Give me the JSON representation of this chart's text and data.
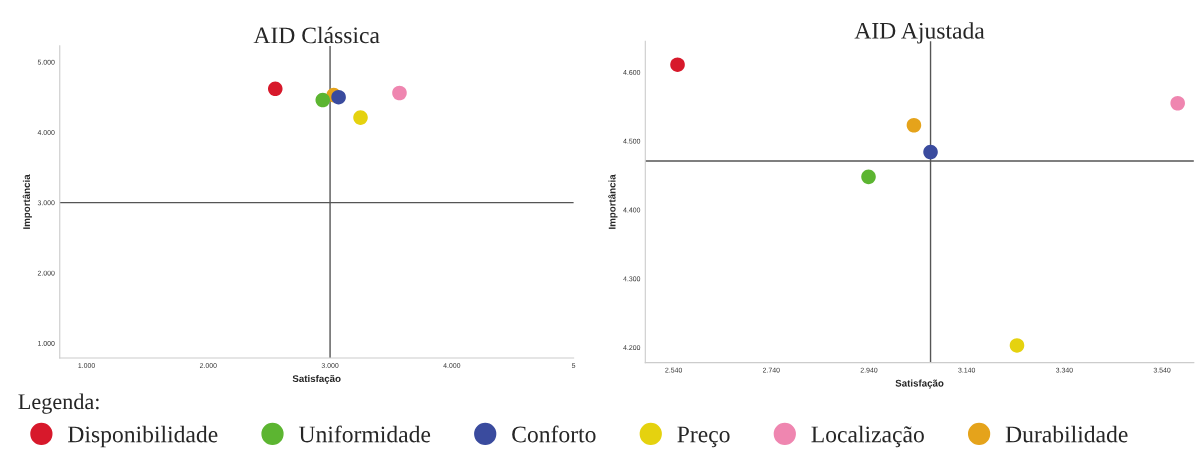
{
  "chart_data": [
    {
      "type": "scatter",
      "title": "AID Clássica",
      "xlabel": "Satisfação",
      "ylabel": "Importância",
      "legend": "bottom",
      "legend_title": "Legenda:",
      "marker": "circle",
      "grid": false,
      "xlim": [
        0.78,
        5.0
      ],
      "ylim": [
        0.79,
        5.23
      ],
      "xticks": [
        {
          "value": 1,
          "label": "1.000"
        },
        {
          "value": 2,
          "label": "2.000"
        },
        {
          "value": 3,
          "label": "3.000"
        },
        {
          "value": 4,
          "label": "4.000"
        },
        5
      ],
      "yticks": [
        {
          "value": 1,
          "label": "1.000"
        },
        {
          "value": 2,
          "label": "2.000"
        },
        {
          "value": 3,
          "label": "3.000"
        },
        {
          "value": 4,
          "label": "4.000"
        },
        {
          "value": 5,
          "label": "5.000"
        }
      ],
      "ref_lines": [
        {
          "axis": "x",
          "value": 3.0,
          "color": "#555555"
        },
        {
          "axis": "y",
          "value": 3.0,
          "color": "#555555"
        }
      ],
      "series": [
        {
          "name": "Disponibilidade",
          "color": "#d7192b",
          "x": [
            2.55
          ],
          "values": [
            4.62
          ]
        },
        {
          "name": "Uniformidade",
          "color": "#5cb531",
          "x": [
            2.94
          ],
          "values": [
            4.46
          ]
        },
        {
          "name": "Conforto",
          "color": "#3a4b9e",
          "x": [
            3.07
          ],
          "values": [
            4.5
          ]
        },
        {
          "name": "Preço",
          "color": "#e5d20f",
          "x": [
            3.25
          ],
          "values": [
            4.21
          ]
        },
        {
          "name": "Localização",
          "color": "#ef86b0",
          "x": [
            3.57
          ],
          "values": [
            4.56
          ]
        },
        {
          "name": "Durabilidade",
          "color": "#e5a31b",
          "x": [
            3.03
          ],
          "values": [
            4.53
          ]
        }
      ]
    },
    {
      "type": "scatter",
      "title": "AID Ajustada",
      "xlabel": "Satisfação",
      "ylabel": "Importância",
      "marker": "circle",
      "grid": false,
      "xlim": [
        2.482,
        3.605
      ],
      "ylim": [
        4.178,
        4.645
      ],
      "xticks": [
        {
          "value": 2.54,
          "label": "2.540"
        },
        {
          "value": 2.74,
          "label": "2.740"
        },
        {
          "value": 2.94,
          "label": "2.940"
        },
        {
          "value": 3.14,
          "label": "3.140"
        },
        {
          "value": 3.34,
          "label": "3.340"
        },
        {
          "value": 3.54,
          "label": "3.540"
        }
      ],
      "yticks": [
        {
          "value": 4.2,
          "label": "4.200"
        },
        {
          "value": 4.3,
          "label": "4.300"
        },
        {
          "value": 4.4,
          "label": "4.400"
        },
        {
          "value": 4.5,
          "label": "4.500"
        },
        {
          "value": 4.6,
          "label": "4.600"
        }
      ],
      "ref_lines": [
        {
          "axis": "x",
          "value": 3.066,
          "color": "#555555"
        },
        {
          "axis": "y",
          "value": 4.471,
          "color": "#555555"
        }
      ],
      "series": [
        {
          "color": "#d7192b",
          "x": [
            2.548
          ],
          "values": [
            4.611
          ]
        },
        {
          "color": "#5cb531",
          "x": [
            2.939
          ],
          "values": [
            4.448
          ]
        },
        {
          "color": "#3a4b9e",
          "x": [
            3.066
          ],
          "values": [
            4.484
          ]
        },
        {
          "color": "#e5d20f",
          "x": [
            3.243
          ],
          "values": [
            4.203
          ]
        },
        {
          "color": "#ef86b0",
          "x": [
            3.572
          ],
          "values": [
            4.555
          ]
        },
        {
          "color": "#e5a31b",
          "x": [
            3.032
          ],
          "values": [
            4.523
          ]
        }
      ]
    }
  ]
}
